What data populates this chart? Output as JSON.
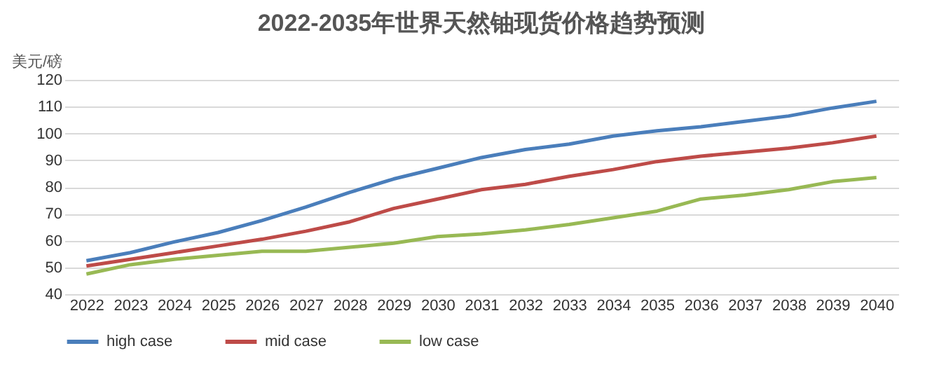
{
  "chart_data": {
    "type": "line",
    "title": "2022-2035年世界天然铀现货价格趋势预测",
    "ylabel": "美元/磅",
    "categories": [
      "2022",
      "2023",
      "2024",
      "2025",
      "2026",
      "2027",
      "2028",
      "2029",
      "2030",
      "2031",
      "2032",
      "2033",
      "2034",
      "2035",
      "2036",
      "2037",
      "2038",
      "2039",
      "2040"
    ],
    "series": [
      {
        "name": "high case",
        "color": "#4a7ebb",
        "values": [
          52.5,
          55.5,
          59.5,
          63,
          67.5,
          72.5,
          78,
          83,
          87,
          91,
          94,
          96,
          99,
          101,
          102.5,
          104.5,
          106.5,
          109.5,
          112
        ]
      },
      {
        "name": "mid case",
        "color": "#be4b48",
        "values": [
          50.5,
          53,
          55.5,
          58,
          60.5,
          63.5,
          67,
          72,
          75.5,
          79,
          81,
          84,
          86.5,
          89.5,
          91.5,
          93,
          94.5,
          96.5,
          99
        ]
      },
      {
        "name": "low case",
        "color": "#98b954",
        "values": [
          47.5,
          51,
          53,
          54.5,
          56,
          56,
          57.5,
          59,
          61.5,
          62.5,
          64,
          66,
          68.5,
          71,
          75.5,
          77,
          79,
          82,
          83.5
        ]
      }
    ],
    "ylim": [
      40,
      120
    ],
    "yticks": [
      40,
      50,
      60,
      70,
      80,
      90,
      100,
      110,
      120
    ],
    "grid": "y",
    "legend": "bottom",
    "marker": "none",
    "line_style": "solid"
  }
}
